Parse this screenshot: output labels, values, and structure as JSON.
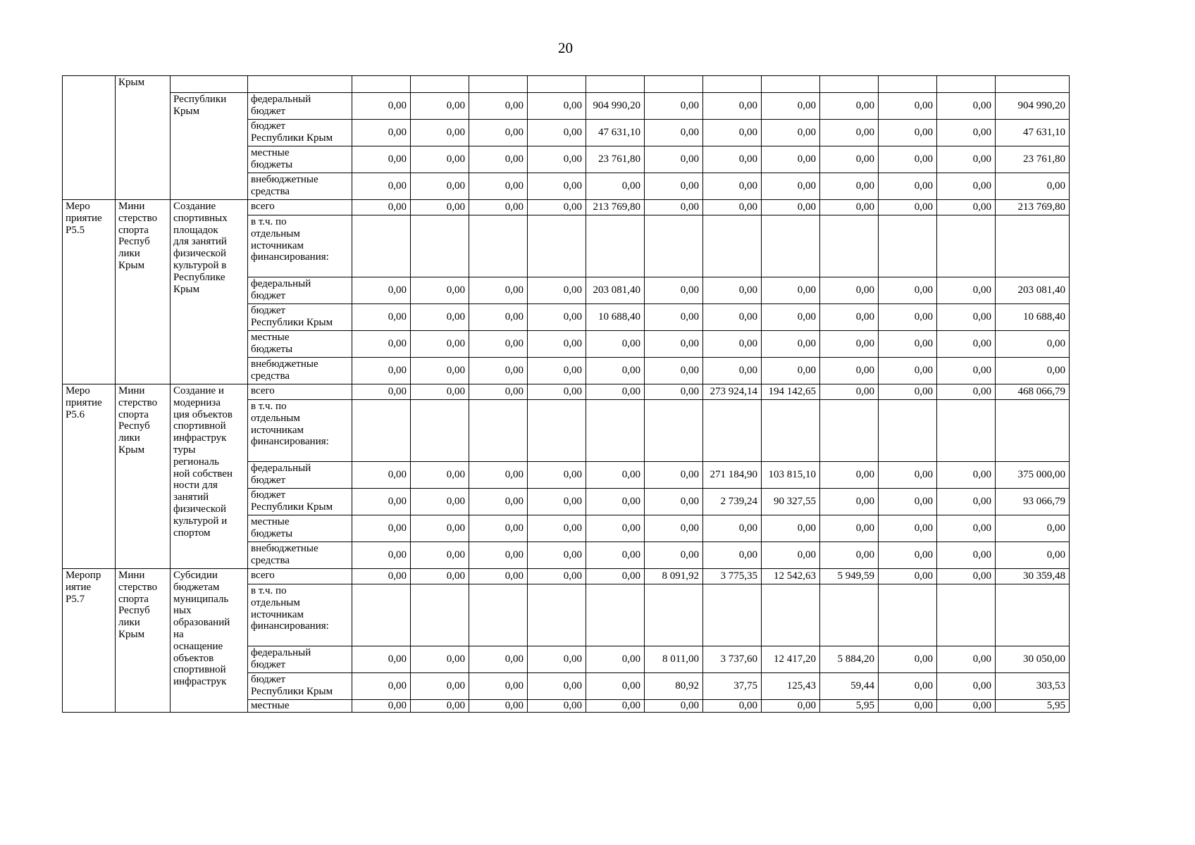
{
  "page": {
    "number": "20"
  },
  "colors": {
    "border": "#000000",
    "text": "#000000",
    "background": "#ffffff"
  },
  "table": {
    "num_value_columns": 12,
    "sections": [
      {
        "activity": "",
        "ministry": "Крым",
        "description": "Республики\nКрым",
        "blank_row": true,
        "rows": [
          {
            "source": "",
            "values": [
              "",
              "",
              "",
              "",
              "",
              "",
              "",
              "",
              "",
              "",
              "",
              ""
            ]
          },
          {
            "source": "федеральный\nбюджет",
            "values": [
              "0,00",
              "0,00",
              "0,00",
              "0,00",
              "904 990,20",
              "0,00",
              "0,00",
              "0,00",
              "0,00",
              "0,00",
              "0,00",
              "904 990,20"
            ]
          },
          {
            "source": "бюджет\nРеспублики Крым",
            "values": [
              "0,00",
              "0,00",
              "0,00",
              "0,00",
              "47 631,10",
              "0,00",
              "0,00",
              "0,00",
              "0,00",
              "0,00",
              "0,00",
              "47 631,10"
            ]
          },
          {
            "source": "местные\nбюджеты",
            "values": [
              "0,00",
              "0,00",
              "0,00",
              "0,00",
              "23 761,80",
              "0,00",
              "0,00",
              "0,00",
              "0,00",
              "0,00",
              "0,00",
              "23 761,80"
            ]
          },
          {
            "source": "внебюджетные\nсредства",
            "values": [
              "0,00",
              "0,00",
              "0,00",
              "0,00",
              "0,00",
              "0,00",
              "0,00",
              "0,00",
              "0,00",
              "0,00",
              "0,00",
              "0,00"
            ]
          }
        ]
      },
      {
        "activity": "Меро\nприятие\nР5.5",
        "ministry": "Мини\nстерство\nспорта\nРеспуб\nлики\nКрым",
        "description": "Создание\nспортивных\nплощадок\nдля занятий\nфизической\nкультурой в\nРеспублике\nКрым",
        "blank_row": false,
        "rows": [
          {
            "source": "всего",
            "values": [
              "0,00",
              "0,00",
              "0,00",
              "0,00",
              "213 769,80",
              "0,00",
              "0,00",
              "0,00",
              "0,00",
              "0,00",
              "0,00",
              "213 769,80"
            ]
          },
          {
            "source": "в т.ч. по\nотдельным\nисточникам\nфинансирования:",
            "values": [
              "",
              "",
              "",
              "",
              "",
              "",
              "",
              "",
              "",
              "",
              "",
              ""
            ]
          },
          {
            "source": "федеральный\nбюджет",
            "values": [
              "0,00",
              "0,00",
              "0,00",
              "0,00",
              "203 081,40",
              "0,00",
              "0,00",
              "0,00",
              "0,00",
              "0,00",
              "0,00",
              "203 081,40"
            ]
          },
          {
            "source": "бюджет\nРеспублики Крым",
            "values": [
              "0,00",
              "0,00",
              "0,00",
              "0,00",
              "10 688,40",
              "0,00",
              "0,00",
              "0,00",
              "0,00",
              "0,00",
              "0,00",
              "10 688,40"
            ]
          },
          {
            "source": "местные\nбюджеты",
            "values": [
              "0,00",
              "0,00",
              "0,00",
              "0,00",
              "0,00",
              "0,00",
              "0,00",
              "0,00",
              "0,00",
              "0,00",
              "0,00",
              "0,00"
            ]
          },
          {
            "source": "внебюджетные\nсредства",
            "values": [
              "0,00",
              "0,00",
              "0,00",
              "0,00",
              "0,00",
              "0,00",
              "0,00",
              "0,00",
              "0,00",
              "0,00",
              "0,00",
              "0,00"
            ]
          }
        ]
      },
      {
        "activity": "Меро\nприятие\nР5.6",
        "ministry": "Мини\nстерство\nспорта\nРеспуб\nлики\nКрым",
        "description": "Создание и\nмодерниза\nция объектов\nспортивной\nинфраструк\nтуры\nрегиональ\nной собствен\nности для\nзанятий\nфизической\nкультурой и\nспортом",
        "blank_row": false,
        "rows": [
          {
            "source": "всего",
            "values": [
              "0,00",
              "0,00",
              "0,00",
              "0,00",
              "0,00",
              "0,00",
              "273 924,14",
              "194 142,65",
              "0,00",
              "0,00",
              "0,00",
              "468 066,79"
            ]
          },
          {
            "source": "в т.ч. по\nотдельным\nисточникам\nфинансирования:",
            "values": [
              "",
              "",
              "",
              "",
              "",
              "",
              "",
              "",
              "",
              "",
              "",
              ""
            ]
          },
          {
            "source": "федеральный\nбюджет",
            "values": [
              "0,00",
              "0,00",
              "0,00",
              "0,00",
              "0,00",
              "0,00",
              "271 184,90",
              "103 815,10",
              "0,00",
              "0,00",
              "0,00",
              "375 000,00"
            ]
          },
          {
            "source": "бюджет\nРеспублики Крым",
            "values": [
              "0,00",
              "0,00",
              "0,00",
              "0,00",
              "0,00",
              "0,00",
              "2 739,24",
              "90 327,55",
              "0,00",
              "0,00",
              "0,00",
              "93 066,79"
            ]
          },
          {
            "source": "местные\nбюджеты",
            "values": [
              "0,00",
              "0,00",
              "0,00",
              "0,00",
              "0,00",
              "0,00",
              "0,00",
              "0,00",
              "0,00",
              "0,00",
              "0,00",
              "0,00"
            ]
          },
          {
            "source": "внебюджетные\nсредства",
            "values": [
              "0,00",
              "0,00",
              "0,00",
              "0,00",
              "0,00",
              "0,00",
              "0,00",
              "0,00",
              "0,00",
              "0,00",
              "0,00",
              "0,00"
            ]
          }
        ]
      },
      {
        "activity": "Меропр\nиятие\nР5.7",
        "ministry": "Мини\nстерство\nспорта\nРеспуб\nлики\nКрым",
        "description": "Субсидии\nбюджетам\nмуниципаль\nных\nобразований\nна\nоснащение\nобъектов\nспортивной\nинфраструк",
        "blank_row": false,
        "rows": [
          {
            "source": "всего",
            "values": [
              "0,00",
              "0,00",
              "0,00",
              "0,00",
              "0,00",
              "8 091,92",
              "3 775,35",
              "12 542,63",
              "5 949,59",
              "0,00",
              "0,00",
              "30 359,48"
            ]
          },
          {
            "source": "в т.ч. по\nотдельным\nисточникам\nфинансирования:",
            "values": [
              "",
              "",
              "",
              "",
              "",
              "",
              "",
              "",
              "",
              "",
              "",
              ""
            ]
          },
          {
            "source": "федеральный\nбюджет",
            "values": [
              "0,00",
              "0,00",
              "0,00",
              "0,00",
              "0,00",
              "8 011,00",
              "3 737,60",
              "12 417,20",
              "5 884,20",
              "0,00",
              "0,00",
              "30 050,00"
            ]
          },
          {
            "source": "бюджет\nРеспублики Крым",
            "values": [
              "0,00",
              "0,00",
              "0,00",
              "0,00",
              "0,00",
              "80,92",
              "37,75",
              "125,43",
              "59,44",
              "0,00",
              "0,00",
              "303,53"
            ]
          },
          {
            "source": "местные",
            "values": [
              "0,00",
              "0,00",
              "0,00",
              "0,00",
              "0,00",
              "0,00",
              "0,00",
              "0,00",
              "5,95",
              "0,00",
              "0,00",
              "5,95"
            ]
          }
        ]
      }
    ]
  }
}
